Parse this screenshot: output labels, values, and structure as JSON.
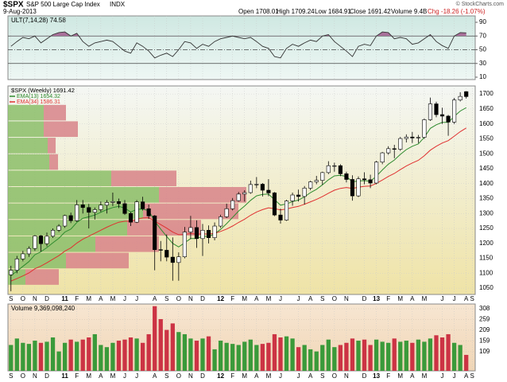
{
  "chart_data": {
    "type": "candlestick",
    "header": {
      "symbol": "$SPX",
      "name": "S&P 500 Large Cap Index",
      "exchange": "INDX",
      "date": "9-Aug-2013",
      "open": "Open 1708.01",
      "high": "High 1709.24",
      "low": "Low 1684.91",
      "close": "Close 1691.42",
      "volume": "Volume 9.4B",
      "change": "Chg -18.26 (-1.07%)",
      "credit": "© StockCharts.com"
    },
    "title": "$SPX (Weekly) 1691.42",
    "categories": [
      "S",
      null,
      "O",
      null,
      "N",
      null,
      "D",
      null,
      null,
      "11",
      null,
      "F",
      null,
      "M",
      null,
      "A",
      null,
      "M",
      null,
      "J",
      null,
      "J",
      null,
      null,
      "A",
      null,
      "S",
      null,
      "O",
      null,
      "N",
      null,
      "D",
      null,
      null,
      "12",
      null,
      "F",
      null,
      "M",
      null,
      "A",
      null,
      "M",
      null,
      "J",
      null,
      null,
      "J",
      null,
      "A",
      null,
      "S",
      null,
      "O",
      null,
      "N",
      null,
      null,
      "D",
      null,
      "13",
      null,
      "F",
      null,
      "M",
      null,
      "A",
      null,
      "M",
      null,
      null,
      "J",
      null,
      "J",
      null,
      "A",
      "S"
    ],
    "open": [
      1095,
      1110,
      1148,
      1165,
      1183,
      1225,
      1199,
      1224,
      1244,
      1258,
      1293,
      1276,
      1329,
      1320,
      1304,
      1313,
      1328,
      1337,
      1340,
      1333,
      1300,
      1271,
      1339,
      1316,
      1292,
      1179,
      1177,
      1154,
      1136,
      1155,
      1238,
      1253,
      1216,
      1244,
      1219,
      1258,
      1289,
      1316,
      1343,
      1365,
      1370,
      1397,
      1398,
      1378,
      1369,
      1295,
      1278,
      1342,
      1362,
      1357,
      1385,
      1406,
      1411,
      1437,
      1460,
      1460,
      1433,
      1414,
      1359,
      1416,
      1413,
      1402,
      1472,
      1503,
      1517,
      1515,
      1551,
      1556,
      1553,
      1555,
      1614,
      1667,
      1631,
      1626,
      1606,
      1680,
      1708.01,
      null
    ],
    "high": [
      1125,
      1158,
      1175,
      1190,
      1228,
      1228,
      1236,
      1250,
      1264,
      1296,
      1303,
      1345,
      1345,
      1332,
      1320,
      1340,
      1345,
      1370,
      1350,
      1345,
      1305,
      1345,
      1356,
      1330,
      1295,
      1208,
      1230,
      1220,
      1170,
      1255,
      1292,
      1277,
      1265,
      1260,
      1270,
      1296,
      1333,
      1352,
      1372,
      1378,
      1410,
      1422,
      1402,
      1415,
      1372,
      1316,
      1346,
      1370,
      1380,
      1392,
      1410,
      1426,
      1440,
      1475,
      1470,
      1465,
      1440,
      1428,
      1424,
      1438,
      1430,
      1476,
      1506,
      1525,
      1530,
      1556,
      1565,
      1573,
      1563,
      1618,
      1688,
      1674,
      1654,
      1630,
      1687,
      1706,
      1709.24,
      null
    ],
    "low": [
      1040,
      1100,
      1140,
      1155,
      1175,
      1173,
      1190,
      1218,
      1238,
      1252,
      1268,
      1272,
      1300,
      1250,
      1280,
      1305,
      1300,
      1325,
      1318,
      1295,
      1258,
      1268,
      1310,
      1282,
      1110,
      1140,
      1140,
      1075,
      1075,
      1150,
      1215,
      1185,
      1158,
      1200,
      1210,
      1252,
      1285,
      1310,
      1340,
      1340,
      1366,
      1385,
      1357,
      1358,
      1291,
      1266,
      1275,
      1326,
      1340,
      1330,
      1378,
      1398,
      1396,
      1432,
      1440,
      1425,
      1404,
      1343,
      1355,
      1398,
      1385,
      1398,
      1465,
      1497,
      1485,
      1510,
      1538,
      1536,
      1536,
      1550,
      1610,
      1622,
      1600,
      1560,
      1600,
      1675,
      1684.91,
      null
    ],
    "close": [
      1110,
      1148,
      1165,
      1183,
      1225,
      1199,
      1224,
      1244,
      1258,
      1293,
      1276,
      1329,
      1320,
      1304,
      1313,
      1328,
      1337,
      1340,
      1333,
      1300,
      1271,
      1339,
      1316,
      1292,
      1179,
      1177,
      1154,
      1136,
      1155,
      1238,
      1253,
      1216,
      1244,
      1219,
      1258,
      1289,
      1316,
      1343,
      1365,
      1370,
      1397,
      1398,
      1378,
      1369,
      1295,
      1278,
      1342,
      1362,
      1357,
      1385,
      1406,
      1411,
      1437,
      1460,
      1460,
      1433,
      1414,
      1359,
      1416,
      1413,
      1402,
      1472,
      1503,
      1517,
      1515,
      1551,
      1556,
      1553,
      1555,
      1614,
      1667,
      1631,
      1626,
      1606,
      1680,
      1692,
      1691.42,
      null
    ],
    "series": [
      {
        "name": "EMA(13) 1654.32",
        "color": "#2e8b2e",
        "values": [
          1092,
          1107,
          1123,
          1139,
          1162,
          1172,
          1186,
          1202,
          1217,
          1238,
          1248,
          1270,
          1284,
          1289,
          1295,
          1304,
          1313,
          1320,
          1324,
          1318,
          1305,
          1314,
          1315,
          1309,
          1274,
          1248,
          1223,
          1200,
          1188,
          1202,
          1216,
          1216,
          1224,
          1223,
          1232,
          1247,
          1266,
          1287,
          1308,
          1325,
          1344,
          1359,
          1364,
          1365,
          1346,
          1328,
          1332,
          1340,
          1345,
          1356,
          1370,
          1381,
          1396,
          1413,
          1426,
          1428,
          1424,
          1406,
          1409,
          1410,
          1408,
          1425,
          1446,
          1465,
          1479,
          1498,
          1514,
          1525,
          1533,
          1555,
          1585,
          1597,
          1605,
          1605,
          1625,
          1643,
          1654.32,
          null
        ]
      },
      {
        "name": "EMA(34) 1586.31",
        "color": "#e03030",
        "values": [
          1074,
          1082,
          1091,
          1101,
          1115,
          1124,
          1135,
          1147,
          1159,
          1174,
          1185,
          1201,
          1214,
          1224,
          1234,
          1244,
          1254,
          1263,
          1271,
          1274,
          1274,
          1281,
          1285,
          1286,
          1274,
          1263,
          1251,
          1238,
          1229,
          1230,
          1233,
          1231,
          1232,
          1231,
          1234,
          1240,
          1248,
          1258,
          1270,
          1281,
          1294,
          1305,
          1313,
          1319,
          1316,
          1312,
          1315,
          1320,
          1324,
          1331,
          1339,
          1347,
          1357,
          1368,
          1378,
          1384,
          1387,
          1384,
          1388,
          1391,
          1392,
          1401,
          1412,
          1424,
          1434,
          1447,
          1459,
          1469,
          1478,
          1493,
          1512,
          1525,
          1536,
          1544,
          1559,
          1574,
          1586.31,
          null
        ]
      }
    ],
    "ylim": [
      1029,
      1727
    ],
    "yticks": [
      1050,
      1100,
      1150,
      1200,
      1250,
      1300,
      1350,
      1400,
      1450,
      1500,
      1550,
      1600,
      1650,
      1700
    ],
    "grid": true,
    "volume_by_price": {
      "bins": [
        1060,
        1115,
        1170,
        1225,
        1280,
        1335,
        1390,
        1445,
        1500,
        1555,
        1610,
        1665
      ],
      "up": [
        22,
        73,
        110,
        150,
        170,
        190,
        130,
        52,
        50,
        45,
        45
      ],
      "down": [
        42,
        79,
        80,
        93,
        120,
        110,
        82,
        11,
        10,
        43,
        28
      ],
      "up_color": "#8cbf6a",
      "down_color": "#d9848a"
    },
    "ult": {
      "label": "ULT(7,14,28) 74.58",
      "color": "#333333",
      "fill_color": "#a8709a",
      "values": [
        55,
        62,
        68,
        66,
        70,
        60,
        66,
        72,
        75,
        76,
        70,
        74,
        62,
        55,
        60,
        62,
        64,
        62,
        55,
        48,
        45,
        60,
        55,
        48,
        38,
        42,
        45,
        40,
        50,
        62,
        60,
        52,
        58,
        55,
        62,
        66,
        68,
        70,
        68,
        66,
        68,
        62,
        55,
        52,
        40,
        38,
        52,
        58,
        55,
        60,
        64,
        62,
        70,
        72,
        62,
        55,
        48,
        40,
        55,
        58,
        56,
        70,
        76,
        75,
        66,
        68,
        66,
        58,
        60,
        66,
        72,
        62,
        56,
        52,
        70,
        75,
        74.58,
        null
      ],
      "ylim": [
        6.5,
        99.3
      ],
      "yticks": [
        90,
        70,
        50,
        30,
        10
      ],
      "ref_lines": [
        70,
        50,
        30
      ]
    },
    "volume": {
      "label": "Volume 9,369,098,240",
      "up_color": "#3a9a3a",
      "down_color": "#cc3344",
      "values": [
        140,
        170,
        150,
        145,
        160,
        150,
        155,
        175,
        110,
        150,
        165,
        155,
        165,
        175,
        190,
        140,
        130,
        150,
        160,
        165,
        175,
        170,
        150,
        190,
        320,
        260,
        210,
        240,
        200,
        190,
        170,
        160,
        170,
        180,
        120,
        160,
        150,
        145,
        140,
        155,
        165,
        140,
        145,
        150,
        190,
        175,
        180,
        170,
        130,
        140,
        120,
        110,
        140,
        165,
        130,
        140,
        150,
        170,
        160,
        165,
        140,
        165,
        155,
        150,
        170,
        155,
        160,
        150,
        165,
        155,
        170,
        185,
        175,
        190,
        150,
        140,
        94,
        null
      ],
      "ylim": [
        20,
        330
      ],
      "yticks": [
        109,
        159,
        209,
        259,
        308
      ]
    }
  }
}
